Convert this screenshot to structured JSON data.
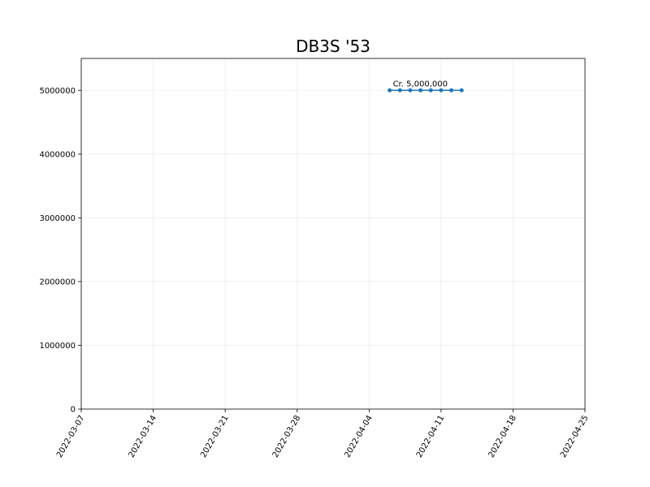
{
  "chart_data": {
    "type": "line",
    "title": "DB3S '53",
    "xlabel": "",
    "ylabel": "",
    "grid": true,
    "x_axis": {
      "type": "date",
      "range": [
        "2022-03-07",
        "2022-04-25"
      ],
      "ticks": [
        "2022-03-07",
        "2022-03-14",
        "2022-03-21",
        "2022-03-28",
        "2022-04-04",
        "2022-04-11",
        "2022-04-18",
        "2022-04-25"
      ],
      "tick_rotation_deg": 60
    },
    "y_axis": {
      "range": [
        0,
        5500000
      ],
      "ticks": [
        0,
        1000000,
        2000000,
        3000000,
        4000000,
        5000000
      ]
    },
    "series": [
      {
        "color": "#1f77b4",
        "marker": "circle",
        "x": [
          "2022-04-06",
          "2022-04-07",
          "2022-04-08",
          "2022-04-09",
          "2022-04-10",
          "2022-04-11",
          "2022-04-12",
          "2022-04-13"
        ],
        "y": [
          5000000,
          5000000,
          5000000,
          5000000,
          5000000,
          5000000,
          5000000,
          5000000
        ]
      }
    ],
    "annotations": [
      {
        "text": "Cr. 5,000,000",
        "x": "2022-04-06",
        "y": 5000000
      }
    ]
  }
}
